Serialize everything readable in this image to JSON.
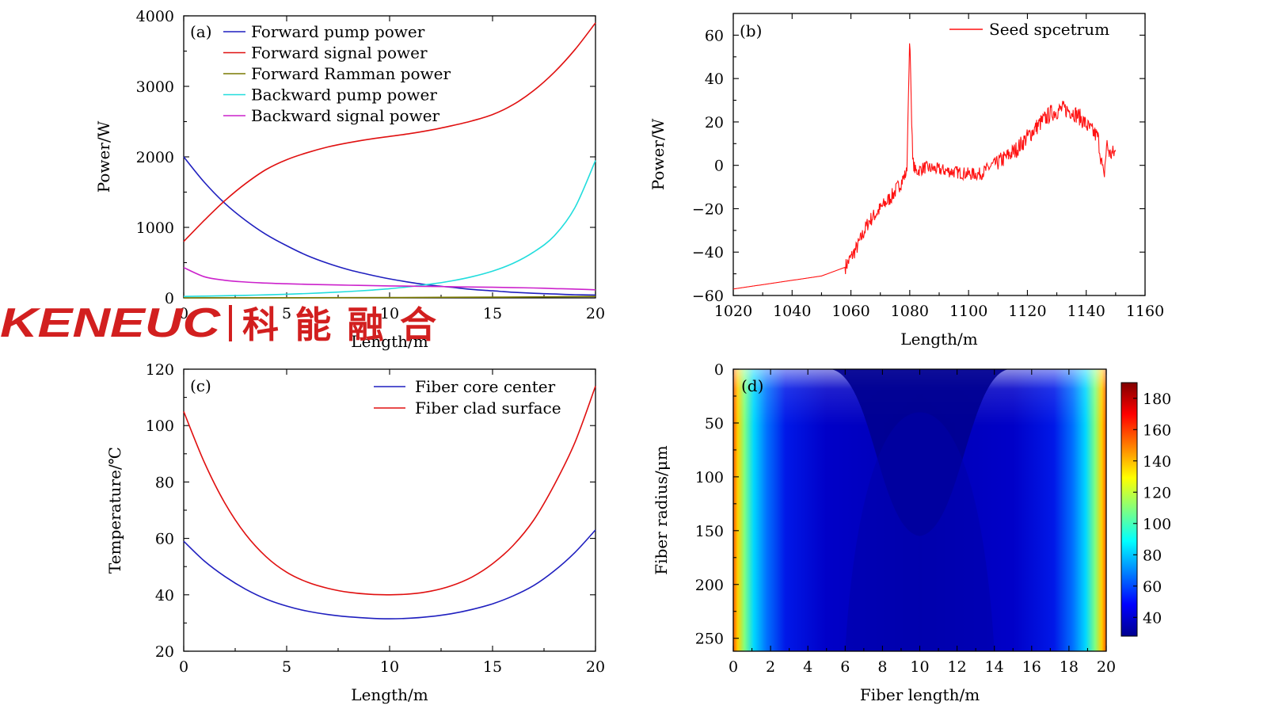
{
  "watermark": {
    "brand": "KENEUC",
    "chinese": "科能融合",
    "color": "#d21f1f"
  },
  "chart_data": [
    {
      "id": "a",
      "panel_label": "(a)",
      "type": "line",
      "xlabel": "Length/m",
      "ylabel": "Power/W",
      "xlim": [
        0,
        20
      ],
      "ylim": [
        0,
        4000
      ],
      "xticks": [
        0,
        5,
        10,
        15,
        20
      ],
      "yticks": [
        0,
        1000,
        2000,
        3000,
        4000
      ],
      "legend_position": "top-left",
      "series": [
        {
          "name": "Forward pump power",
          "color": "#1f1fbf",
          "x": [
            0,
            1,
            2,
            3,
            4,
            5,
            6,
            7,
            8,
            9,
            10,
            11,
            12,
            13,
            14,
            15,
            16,
            17,
            18,
            19,
            20
          ],
          "y": [
            2000,
            1640,
            1340,
            1100,
            900,
            740,
            600,
            490,
            400,
            330,
            270,
            220,
            180,
            150,
            120,
            100,
            80,
            65,
            55,
            45,
            40
          ]
        },
        {
          "name": "Forward signal power",
          "color": "#e01010",
          "x": [
            0,
            1,
            2,
            3,
            4,
            5,
            6,
            7,
            8,
            9,
            10,
            11,
            12,
            13,
            14,
            15,
            16,
            17,
            18,
            19,
            20
          ],
          "y": [
            800,
            1100,
            1380,
            1620,
            1820,
            1960,
            2060,
            2140,
            2200,
            2250,
            2290,
            2330,
            2380,
            2440,
            2510,
            2600,
            2740,
            2940,
            3200,
            3520,
            3900
          ]
        },
        {
          "name": "Forward Ramman power",
          "color": "#7a7a00",
          "x": [
            0,
            5,
            10,
            15,
            20
          ],
          "y": [
            0,
            2,
            5,
            10,
            20
          ]
        },
        {
          "name": "Backward pump power",
          "color": "#22dddd",
          "x": [
            0,
            1,
            2,
            3,
            4,
            5,
            6,
            7,
            8,
            9,
            10,
            11,
            12,
            13,
            14,
            15,
            16,
            17,
            18,
            19,
            20
          ],
          "y": [
            20,
            25,
            30,
            36,
            43,
            52,
            62,
            75,
            90,
            108,
            130,
            160,
            195,
            240,
            300,
            380,
            490,
            650,
            880,
            1280,
            1950
          ]
        },
        {
          "name": "Backward signal power",
          "color": "#cc22cc",
          "x": [
            0,
            1,
            2,
            3,
            4,
            5,
            6,
            7,
            8,
            9,
            10,
            11,
            12,
            13,
            14,
            15,
            16,
            17,
            18,
            19,
            20
          ],
          "y": [
            430,
            300,
            250,
            225,
            210,
            200,
            192,
            186,
            180,
            175,
            170,
            166,
            162,
            158,
            154,
            150,
            145,
            140,
            132,
            125,
            115
          ]
        }
      ]
    },
    {
      "id": "b",
      "panel_label": "(b)",
      "type": "line",
      "xlabel": "Length/m",
      "ylabel": "Power/W",
      "xlim": [
        1020,
        1160
      ],
      "ylim": [
        -60,
        70
      ],
      "xticks": [
        1020,
        1040,
        1060,
        1080,
        1100,
        1120,
        1140,
        1160
      ],
      "yticks": [
        -60,
        -40,
        -20,
        0,
        20,
        40,
        60
      ],
      "ytick_labels": [
        "−60",
        "−40",
        "−20",
        "0",
        "20",
        "40",
        "60"
      ],
      "legend_position": "top-right",
      "series": [
        {
          "name": "Seed spcetrum",
          "color": "#ff1111",
          "x": [
            1020,
            1030,
            1040,
            1050,
            1058,
            1062,
            1066,
            1070,
            1074,
            1077,
            1079,
            1080,
            1081,
            1082,
            1085,
            1090,
            1095,
            1100,
            1104,
            1108,
            1112,
            1116,
            1120,
            1124,
            1128,
            1132,
            1135,
            1138,
            1141,
            1144,
            1146,
            1147,
            1148,
            1150
          ],
          "y": [
            -57,
            -55,
            -53,
            -51,
            -47,
            -38,
            -26,
            -20,
            -14,
            -8,
            -3,
            60,
            2,
            -3,
            -1,
            -2,
            -3,
            -4,
            -4,
            0,
            3,
            7,
            13,
            19,
            24,
            26,
            25,
            22,
            17,
            13,
            -6,
            10,
            5,
            6
          ]
        }
      ]
    },
    {
      "id": "c",
      "panel_label": "(c)",
      "type": "line",
      "xlabel": "Length/m",
      "ylabel": "Temperature/℃",
      "xlim": [
        0,
        20
      ],
      "ylim": [
        20,
        120
      ],
      "xticks": [
        0,
        5,
        10,
        15,
        20
      ],
      "yticks": [
        20,
        40,
        60,
        80,
        100,
        120
      ],
      "legend_position": "top-right",
      "series": [
        {
          "name": "Fiber core center",
          "color": "#1f1fbf",
          "x": [
            0,
            1,
            2,
            3,
            4,
            5,
            6,
            7,
            8,
            9,
            10,
            11,
            12,
            13,
            14,
            15,
            16,
            17,
            18,
            19,
            20
          ],
          "y": [
            59,
            52,
            46.5,
            42,
            38.5,
            36,
            34.2,
            33,
            32.2,
            31.7,
            31.5,
            31.7,
            32.3,
            33.3,
            34.8,
            36.8,
            39.6,
            43.3,
            48.5,
            55,
            63
          ]
        },
        {
          "name": "Fiber clad surface",
          "color": "#e01010",
          "x": [
            0,
            1,
            2,
            3,
            4,
            5,
            6,
            7,
            8,
            9,
            10,
            11,
            12,
            13,
            14,
            15,
            16,
            17,
            18,
            19,
            20
          ],
          "y": [
            105,
            87,
            72.5,
            61.5,
            53.5,
            48,
            44.5,
            42.3,
            40.9,
            40.2,
            40,
            40.3,
            41.3,
            43.2,
            46.3,
            51,
            57.5,
            66.5,
            79,
            94,
            114
          ]
        }
      ]
    },
    {
      "id": "d",
      "panel_label": "(d)",
      "type": "heatmap",
      "xlabel": "Fiber length/m",
      "ylabel": "Fiber radius/μm",
      "xlim": [
        0,
        20
      ],
      "ylim": [
        0,
        262
      ],
      "y_inverted": true,
      "xticks": [
        0,
        2,
        4,
        6,
        8,
        10,
        12,
        14,
        16,
        18,
        20
      ],
      "yticks": [
        0,
        50,
        100,
        150,
        200,
        250
      ],
      "colorbar": {
        "range": [
          28,
          190
        ],
        "ticks": [
          40,
          60,
          80,
          100,
          120,
          140,
          160,
          180
        ],
        "colormap": "jet"
      }
    }
  ]
}
